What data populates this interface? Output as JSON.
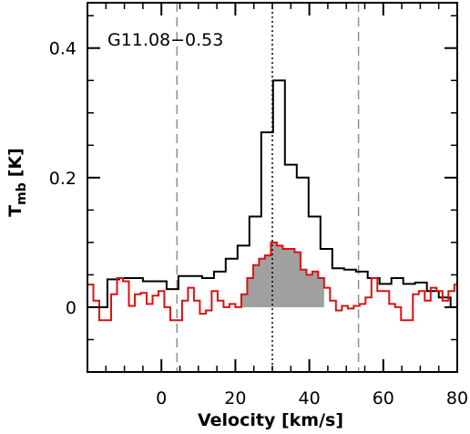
{
  "chart_data": {
    "type": "line",
    "title": "G11.08−0.53",
    "xlabel": "Velocity [km/s]",
    "ylabel_main": "T",
    "ylabel_sub": "mb",
    "ylabel_unit": "[K]",
    "xlim": [
      -20,
      80
    ],
    "ylim": [
      -0.1,
      0.47
    ],
    "x_ticks": [
      0,
      20,
      40,
      60,
      80
    ],
    "x_tick_labels": [
      "0",
      "20",
      "40",
      "60",
      "80"
    ],
    "y_ticks": [
      0,
      0.2,
      0.4
    ],
    "y_tick_labels": [
      "0",
      "0.2",
      "0.4"
    ],
    "grid": false,
    "legend": "none",
    "reference_lines": [
      {
        "x": 4.2,
        "style": "dashed",
        "color": "#909090"
      },
      {
        "x": 30.0,
        "style": "dotted",
        "color": "#000000"
      },
      {
        "x": 53.3,
        "style": "dashed",
        "color": "#909090"
      }
    ],
    "series": [
      {
        "color": "#000000",
        "style": "step",
        "x": [
          -20,
          -14.6,
          -13.0,
          -11.4,
          -9.8,
          -8.2,
          -6.6,
          -5.0,
          -3.4,
          -1.8,
          -0.2,
          1.4,
          3.0,
          4.6,
          6.2,
          7.8,
          9.4,
          11.0,
          12.6,
          14.2,
          15.8,
          17.4,
          19.0,
          20.6,
          22.2,
          23.8,
          25.4,
          27.0,
          28.6,
          30.2,
          31.8,
          33.4,
          35.0,
          36.6,
          38.2,
          39.8,
          41.4,
          43.0,
          44.6,
          46.2,
          47.8,
          49.4,
          51.0,
          52.6,
          54.2,
          55.8,
          57.4,
          59.0,
          60.6,
          62.2,
          63.8,
          65.4,
          67.0,
          68.6,
          70.2,
          71.8,
          73.4,
          75.0,
          76.6,
          78.2,
          79.8
        ],
        "values": [
          0.0,
          0.043,
          0.043,
          0.045,
          0.045,
          0.045,
          0.045,
          0.04,
          0.04,
          0.04,
          0.04,
          0.028,
          0.028,
          0.048,
          0.048,
          0.048,
          0.048,
          0.045,
          0.045,
          0.055,
          0.055,
          0.075,
          0.075,
          0.095,
          0.095,
          0.14,
          0.14,
          0.27,
          0.27,
          0.35,
          0.35,
          0.22,
          0.22,
          0.2,
          0.2,
          0.14,
          0.14,
          0.09,
          0.09,
          0.06,
          0.06,
          0.058,
          0.058,
          0.055,
          0.055,
          0.045,
          0.045,
          0.036,
          0.036,
          0.045,
          0.045,
          0.036,
          0.036,
          0.038,
          0.038,
          0.025,
          0.025,
          0.015,
          0.015,
          0.0,
          0.0
        ]
      },
      {
        "color": "#dd1111",
        "style": "step",
        "x": [
          -20,
          -18.4,
          -16.8,
          -15.2,
          -13.6,
          -12.0,
          -10.4,
          -8.8,
          -7.2,
          -5.6,
          -4.0,
          -2.4,
          -0.8,
          0.8,
          2.4,
          4.0,
          5.6,
          7.2,
          8.8,
          10.4,
          12.0,
          13.6,
          15.2,
          16.8,
          18.4,
          20.0,
          21.6,
          23.2,
          24.8,
          26.4,
          28.0,
          29.6,
          31.2,
          32.8,
          34.4,
          36.0,
          37.6,
          39.2,
          40.8,
          42.4,
          44.0,
          45.6,
          47.2,
          48.8,
          50.4,
          52.0,
          53.6,
          55.2,
          56.8,
          58.4,
          60.0,
          61.6,
          63.2,
          64.8,
          66.4,
          68.0,
          69.6,
          71.2,
          72.8,
          74.4,
          76.0,
          77.6,
          79.2
        ],
        "values": [
          0.035,
          0.01,
          -0.02,
          -0.02,
          0.02,
          0.045,
          0.04,
          0.002,
          0.02,
          0.022,
          0.005,
          0.018,
          0.025,
          0.0,
          -0.02,
          -0.02,
          0.01,
          0.03,
          0.01,
          -0.01,
          -0.005,
          0.025,
          0.01,
          0.0,
          0.005,
          0.0,
          0.02,
          0.045,
          0.065,
          0.075,
          0.08,
          0.1,
          0.095,
          0.09,
          0.09,
          0.085,
          0.058,
          0.05,
          0.055,
          0.045,
          0.03,
          0.01,
          -0.005,
          0.002,
          -0.002,
          0.002,
          0.005,
          0.015,
          0.045,
          0.025,
          0.025,
          0.005,
          0.0,
          -0.02,
          -0.02,
          0.02,
          0.025,
          0.01,
          0.03,
          0.025,
          0.01,
          0.025,
          0.035
        ]
      }
    ],
    "fill_region": {
      "color": "#a0a0a0",
      "x_range": [
        21.6,
        44.0
      ]
    }
  }
}
